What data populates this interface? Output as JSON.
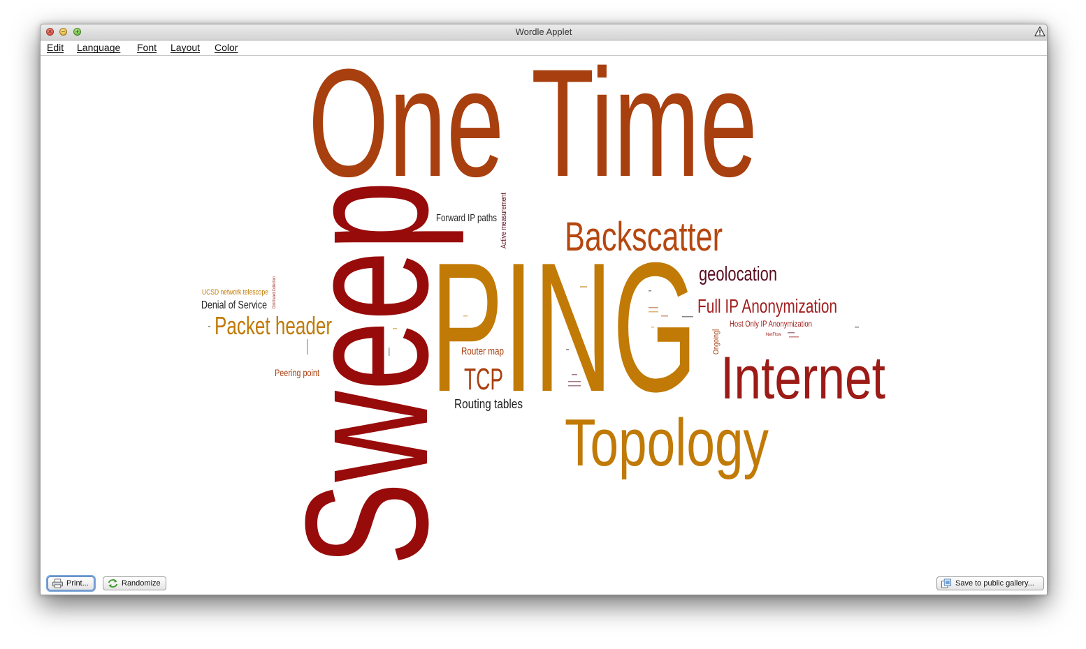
{
  "window": {
    "title": "Wordle Applet"
  },
  "menu": {
    "items": [
      {
        "label": "Edit",
        "name": "menu-edit"
      },
      {
        "label": "Language",
        "name": "menu-language"
      },
      {
        "label": "Font",
        "name": "menu-font"
      },
      {
        "label": "Layout",
        "name": "menu-layout"
      },
      {
        "label": "Color",
        "name": "menu-color"
      }
    ]
  },
  "colors": {
    "rust": "#a83f0f",
    "dark_red": "#980b0b",
    "gold": "#c17a05",
    "maroon": "#5a0f20",
    "crimson": "#9c1b16",
    "black": "#222222"
  },
  "cloud": {
    "words": [
      {
        "text": "One Time"
      },
      {
        "text": "Sweep"
      },
      {
        "text": "PING"
      },
      {
        "text": "Backscatter"
      },
      {
        "text": "Internet"
      },
      {
        "text": "Topology"
      },
      {
        "text": "geolocation"
      },
      {
        "text": "Full IP Anonymization"
      },
      {
        "text": "Host Only IP Anonymization"
      },
      {
        "text": "TCP"
      },
      {
        "text": "Router map"
      },
      {
        "text": "Routing tables"
      },
      {
        "text": "Forward IP paths"
      },
      {
        "text": "Active measurement"
      },
      {
        "text": "Packet header"
      },
      {
        "text": "Denial of Service"
      },
      {
        "text": "UCSD network telescope"
      },
      {
        "text": "Peering point"
      },
      {
        "text": "Ongoing"
      },
      {
        "text": "Distributed Collection"
      },
      {
        "text": "NetFlow"
      }
    ]
  },
  "buttons": {
    "print": "Print...",
    "randomize": "Randomize",
    "save": "Save to public gallery..."
  }
}
